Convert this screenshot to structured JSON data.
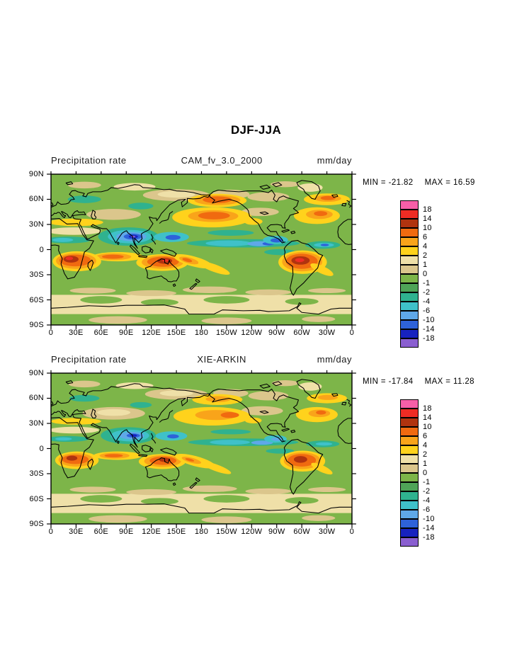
{
  "page": {
    "title": "DJF-JJA"
  },
  "palette": {
    "colors": [
      "#f75fa8",
      "#ee2c24",
      "#b0330f",
      "#f06a10",
      "#f9a41a",
      "#ffd21c",
      "#efe0a8",
      "#dbc68c",
      "#7db549",
      "#4fa457",
      "#2fb28f",
      "#3fc1c9",
      "#5fa8e8",
      "#2e62d9",
      "#1722bf",
      "#8a5fd0"
    ]
  },
  "axes": {
    "lat_labels": [
      "90N",
      "60N",
      "30N",
      "0",
      "30S",
      "60S",
      "90S"
    ],
    "lon_labels": [
      "0",
      "30E",
      "60E",
      "90E",
      "120E",
      "150E",
      "180",
      "150W",
      "120W",
      "90W",
      "60W",
      "30W",
      "0"
    ]
  },
  "colorbar": {
    "tick_labels": [
      "18",
      "14",
      "10",
      "6",
      "4",
      "2",
      "1",
      "0",
      "-1",
      "-2",
      "-4",
      "-6",
      "-10",
      "-14",
      "-18"
    ]
  },
  "panels": [
    {
      "field_label": "Precipitation rate",
      "title": "CAM_fv_3.0_2000",
      "units": "mm/day",
      "min_label": "MIN = -21.82",
      "max_label": "MAX =  16.59",
      "min": -21.82,
      "max": 16.59
    },
    {
      "field_label": "Precipitation rate",
      "title": "XIE-ARKIN",
      "units": "mm/day",
      "min_label": "MIN = -17.84",
      "max_label": "MAX =  11.28",
      "min": -17.84,
      "max": 11.28
    }
  ],
  "chart_data": [
    {
      "type": "heatmap",
      "subtype": "global-lat-lon-contour-map",
      "figure_title": "DJF-JJA",
      "panel_title": "CAM_fv_3.0_2000",
      "variable": "Precipitation rate",
      "units": "mm/day",
      "season_difference": "DJF-JJA",
      "min": -21.82,
      "max": 16.59,
      "contour_levels": [
        18,
        14,
        10,
        6,
        4,
        2,
        1,
        0,
        -1,
        -2,
        -4,
        -6,
        -10,
        -14,
        -18
      ],
      "lat_ticks": [
        "90N",
        "60N",
        "30N",
        "0",
        "30S",
        "60S",
        "90S"
      ],
      "lon_ticks": [
        "0",
        "30E",
        "60E",
        "90E",
        "120E",
        "150E",
        "180",
        "150W",
        "120W",
        "90W",
        "60W",
        "30W",
        "0"
      ],
      "legend_position": "right",
      "description": "Positive (yellow/orange/red) anomalies over Southern-Hemisphere tropics (South America, southern Africa, northern Australia) and NH midlatitude ocean storm tracks; negative (teal/blue) anomalies over NH monsoon regions (South/Southeast Asia, Sahel, Central America) and the Pacific/Atlantic ITCZ."
    },
    {
      "type": "heatmap",
      "subtype": "global-lat-lon-contour-map",
      "figure_title": "DJF-JJA",
      "panel_title": "XIE-ARKIN",
      "variable": "Precipitation rate",
      "units": "mm/day",
      "season_difference": "DJF-JJA",
      "min": -17.84,
      "max": 11.28,
      "contour_levels": [
        18,
        14,
        10,
        6,
        4,
        2,
        1,
        0,
        -1,
        -2,
        -4,
        -6,
        -10,
        -14,
        -18
      ],
      "lat_ticks": [
        "90N",
        "60N",
        "30N",
        "0",
        "30S",
        "60S",
        "90S"
      ],
      "lon_ticks": [
        "0",
        "30E",
        "60E",
        "90E",
        "120E",
        "150E",
        "180",
        "150W",
        "120W",
        "90W",
        "60W",
        "30W",
        "0"
      ],
      "legend_position": "right",
      "description": "Observed (Xie-Arkin) DJF-JJA precipitation difference with the same sign pattern as the model panel but weaker extremes."
    }
  ]
}
